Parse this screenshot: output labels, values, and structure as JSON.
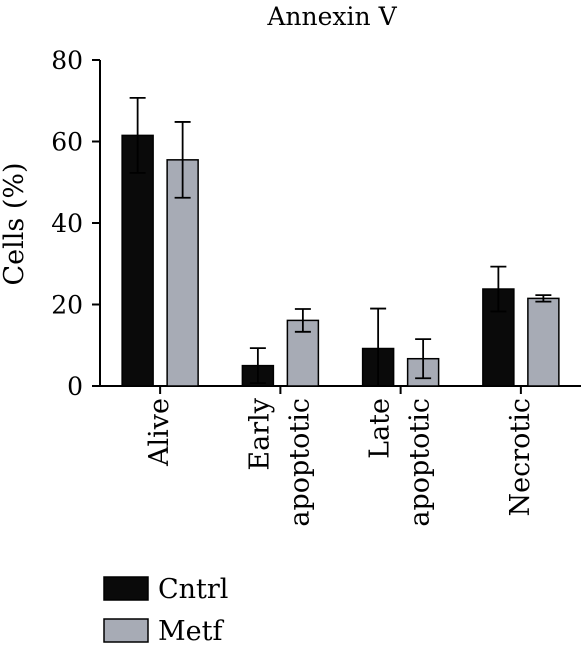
{
  "chart_data": {
    "type": "bar",
    "title": "Annexin V",
    "ylabel": "Cells (%)",
    "xlabel": "",
    "ylim": [
      0,
      80
    ],
    "yticks": [
      0,
      20,
      40,
      60,
      80
    ],
    "categories": [
      [
        "Alive"
      ],
      [
        "Early",
        "apoptotic"
      ],
      [
        "Late",
        "apoptotic"
      ],
      [
        "Necrotic"
      ]
    ],
    "series": [
      {
        "name": "Cntrl",
        "color": "#0a0a0a",
        "values": [
          61.5,
          5.0,
          9.2,
          23.8
        ],
        "errors": [
          9.2,
          4.3,
          9.8,
          5.5
        ]
      },
      {
        "name": "Metf",
        "color": "#a7abb5",
        "values": [
          55.5,
          16.1,
          6.7,
          21.5
        ],
        "errors": [
          9.3,
          2.8,
          4.8,
          0.8
        ]
      }
    ],
    "legend_position": "bottom-left",
    "grid": false
  }
}
